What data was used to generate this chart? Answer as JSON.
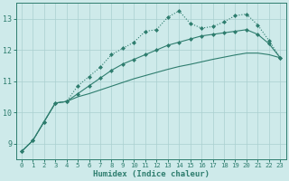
{
  "xlabel": "Humidex (Indice chaleur)",
  "bg_color": "#ceeaea",
  "grid_color": "#aacfcf",
  "line_color": "#2e7d6e",
  "xlim": [
    -0.5,
    23.5
  ],
  "ylim": [
    8.5,
    13.5
  ],
  "xticks": [
    0,
    1,
    2,
    3,
    4,
    5,
    6,
    7,
    8,
    9,
    10,
    11,
    12,
    13,
    14,
    15,
    16,
    17,
    18,
    19,
    20,
    21,
    22,
    23
  ],
  "yticks": [
    9,
    10,
    11,
    12,
    13
  ],
  "line1_x": [
    0,
    1,
    2,
    3,
    4,
    5,
    6,
    7,
    8,
    9,
    10,
    11,
    12,
    13,
    14,
    15,
    16,
    17,
    18,
    19,
    20,
    21,
    22,
    23
  ],
  "line1_y": [
    8.75,
    9.1,
    9.7,
    10.3,
    10.35,
    10.85,
    11.15,
    11.45,
    11.85,
    12.05,
    12.25,
    12.6,
    12.65,
    13.05,
    13.25,
    12.85,
    12.7,
    12.75,
    12.9,
    13.1,
    13.15,
    12.8,
    12.3,
    11.75
  ],
  "line2_x": [
    0,
    1,
    2,
    3,
    4,
    5,
    6,
    7,
    8,
    9,
    10,
    11,
    12,
    13,
    14,
    15,
    16,
    17,
    18,
    19,
    20,
    21,
    22,
    23
  ],
  "line2_y": [
    8.75,
    9.1,
    9.7,
    10.3,
    10.35,
    10.6,
    10.85,
    11.1,
    11.35,
    11.55,
    11.7,
    11.85,
    12.0,
    12.15,
    12.25,
    12.35,
    12.45,
    12.5,
    12.55,
    12.6,
    12.65,
    12.5,
    12.2,
    11.75
  ],
  "line3_x": [
    0,
    1,
    2,
    3,
    4,
    5,
    6,
    7,
    8,
    9,
    10,
    11,
    12,
    13,
    14,
    15,
    16,
    17,
    18,
    19,
    20,
    21,
    22,
    23
  ],
  "line3_y": [
    8.75,
    9.1,
    9.7,
    10.3,
    10.35,
    10.5,
    10.6,
    10.72,
    10.84,
    10.96,
    11.08,
    11.18,
    11.28,
    11.38,
    11.47,
    11.54,
    11.62,
    11.7,
    11.77,
    11.84,
    11.9,
    11.9,
    11.85,
    11.75
  ]
}
